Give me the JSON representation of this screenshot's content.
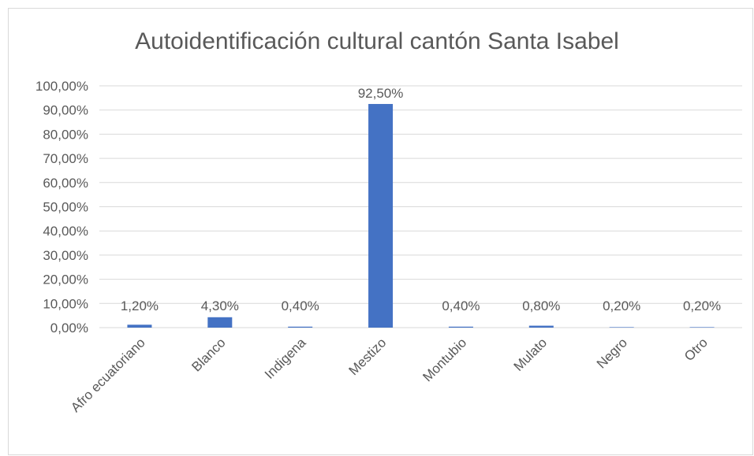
{
  "chart_data": {
    "type": "bar",
    "title": "Autoidentificación cultural cantón Santa Isabel",
    "xlabel": "",
    "ylabel": "",
    "categories": [
      "Afro ecuatoriano",
      "Blanco",
      "Indigena",
      "Mestizo",
      "Montubio",
      "Mulato",
      "Negro",
      "Otro"
    ],
    "values": [
      1.2,
      4.3,
      0.4,
      92.5,
      0.4,
      0.8,
      0.2,
      0.2
    ],
    "data_labels": [
      "1,20%",
      "4,30%",
      "0,40%",
      "92,50%",
      "0,40%",
      "0,80%",
      "0,20%",
      "0,20%"
    ],
    "ylim": [
      0,
      100
    ],
    "y_ticks": [
      0,
      10,
      20,
      30,
      40,
      50,
      60,
      70,
      80,
      90,
      100
    ],
    "y_tick_labels": [
      "0,00%",
      "10,00%",
      "20,00%",
      "30,00%",
      "40,00%",
      "50,00%",
      "60,00%",
      "70,00%",
      "80,00%",
      "90,00%",
      "100,00%"
    ],
    "grid": true,
    "legend": "none",
    "bar_color": "#4472c4",
    "gridline_color": "#d9d9d9",
    "text_color": "#595959"
  }
}
